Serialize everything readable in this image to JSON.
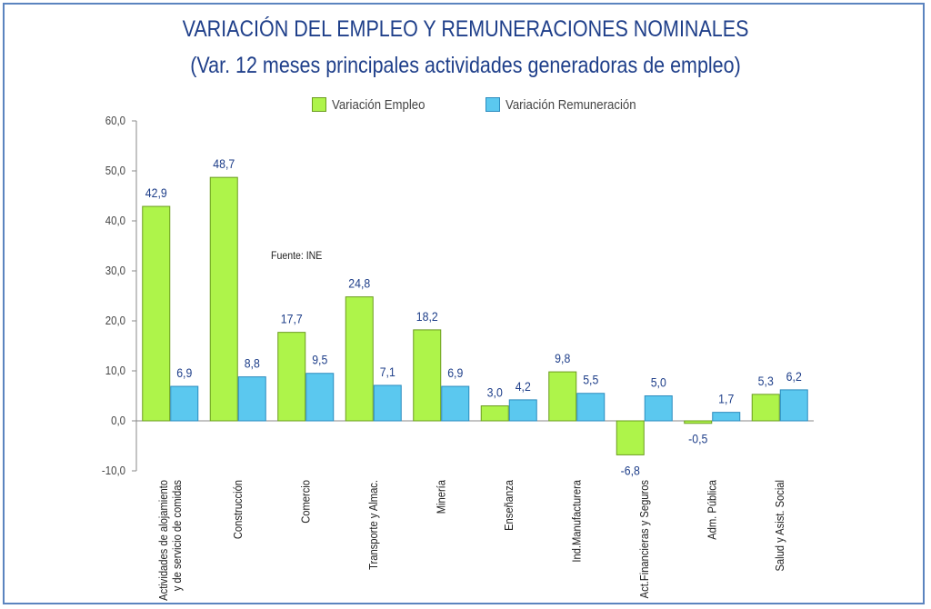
{
  "title": "VARIACIÓN DEL EMPLEO Y REMUNERACIONES NOMINALES",
  "subtitle": "(Var. 12 meses principales actividades generadoras de empleo)",
  "source": "Fuente: INE",
  "colors": {
    "employment": "#aef44a",
    "employment_border": "#6b9c1f",
    "remuneration": "#5bc8ef",
    "remuneration_border": "#2b8cbf",
    "title": "#1f3f8a",
    "frame": "#5b84bf",
    "value_label": "#1f3f8a"
  },
  "chart_data": {
    "type": "bar",
    "categories": [
      "Actividades de alojamiento y de servicio de comidas",
      "Construcción",
      "Comercio",
      "Transporte y Almac.",
      "Minería",
      "Enseñanza",
      "Ind.Manufacturera",
      "Act.Financieras y Seguros",
      "Adm. Pública",
      "Salud y Asist. Social"
    ],
    "category_lines": [
      [
        "Actividades de alojamiento",
        "y de servicio de comidas"
      ],
      [
        "Construcción"
      ],
      [
        "Comercio"
      ],
      [
        "Transporte y Almac."
      ],
      [
        "Minería"
      ],
      [
        "Enseñanza"
      ],
      [
        "Ind.Manufacturera"
      ],
      [
        "Act.Financieras y Seguros"
      ],
      [
        "Adm. Pública"
      ],
      [
        "Salud y Asist. Social"
      ]
    ],
    "series": [
      {
        "name": "Variación Empleo",
        "values": [
          42.9,
          48.7,
          17.7,
          24.8,
          18.2,
          3.0,
          9.8,
          -6.8,
          -0.5,
          5.3
        ]
      },
      {
        "name": "Variación Remuneración",
        "values": [
          6.9,
          8.8,
          9.5,
          7.1,
          6.9,
          4.2,
          5.5,
          5.0,
          1.7,
          6.2
        ]
      }
    ],
    "ylim": [
      -10,
      60
    ],
    "yticks": [
      -10,
      0,
      10,
      20,
      30,
      40,
      50,
      60
    ],
    "ytick_labels": [
      "-10,0",
      "0,0",
      "10,0",
      "20,0",
      "30,0",
      "40,0",
      "50,0",
      "60,0"
    ],
    "value_labels": [
      [
        "42,9",
        "48,7",
        "17,7",
        "24,8",
        "18,2",
        "3,0",
        "9,8",
        "-6,8",
        "-0,5",
        "5,3"
      ],
      [
        "6,9",
        "8,8",
        "9,5",
        "7,1",
        "6,9",
        "4,2",
        "5,5",
        "5,0",
        "1,7",
        "6,2"
      ]
    ],
    "legend_position": "top",
    "grid": false
  }
}
